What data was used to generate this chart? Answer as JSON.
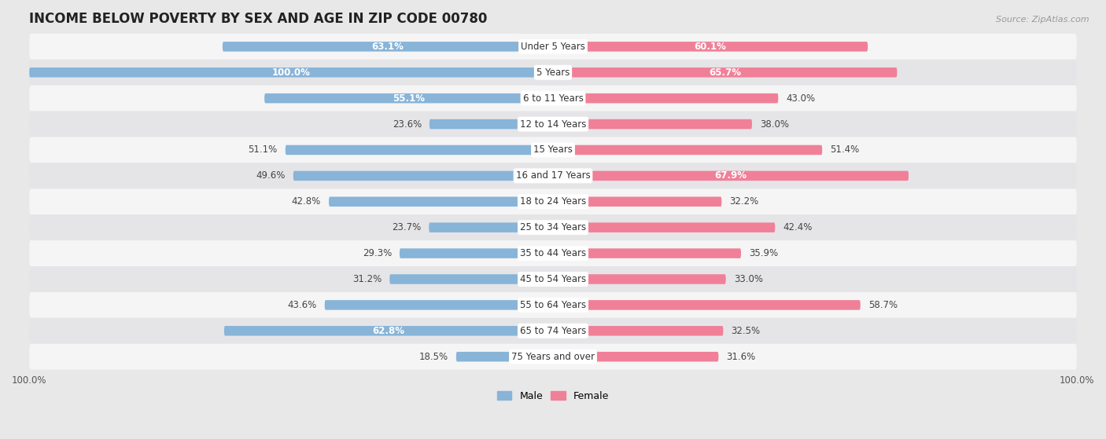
{
  "title": "INCOME BELOW POVERTY BY SEX AND AGE IN ZIP CODE 00780",
  "source": "Source: ZipAtlas.com",
  "categories": [
    "Under 5 Years",
    "5 Years",
    "6 to 11 Years",
    "12 to 14 Years",
    "15 Years",
    "16 and 17 Years",
    "18 to 24 Years",
    "25 to 34 Years",
    "35 to 44 Years",
    "45 to 54 Years",
    "55 to 64 Years",
    "65 to 74 Years",
    "75 Years and over"
  ],
  "male_values": [
    63.1,
    100.0,
    55.1,
    23.6,
    51.1,
    49.6,
    42.8,
    23.7,
    29.3,
    31.2,
    43.6,
    62.8,
    18.5
  ],
  "female_values": [
    60.1,
    65.7,
    43.0,
    38.0,
    51.4,
    67.9,
    32.2,
    42.4,
    35.9,
    33.0,
    58.7,
    32.5,
    31.6
  ],
  "male_color": "#88b4d8",
  "female_color": "#f08098",
  "male_color_light": "#b8d0e8",
  "female_color_light": "#f8b8c8",
  "male_label": "Male",
  "female_label": "Female",
  "bar_height": 0.38,
  "xlim": 100.0,
  "bg_color": "#e8e8e8",
  "row_colors_light": [
    "#f8f8f8",
    "#e8e8e8"
  ],
  "title_fontsize": 12,
  "label_fontsize": 8.5,
  "value_fontsize": 8.5,
  "tick_fontsize": 8.5,
  "source_fontsize": 8
}
